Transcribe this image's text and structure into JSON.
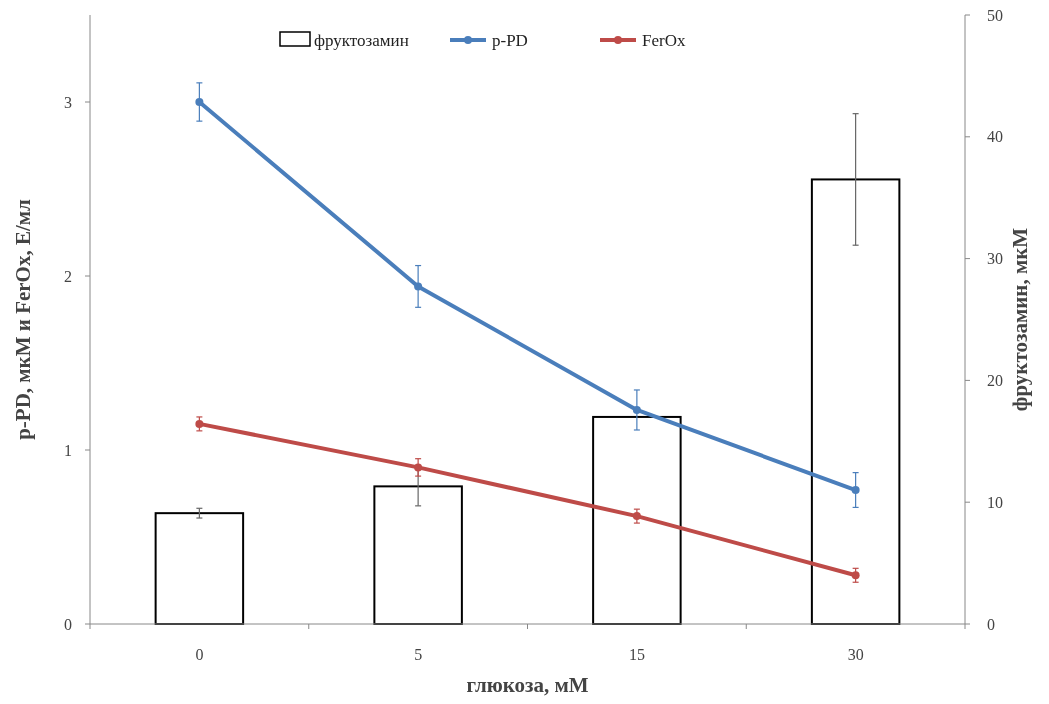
{
  "chart_data": {
    "type": "bar",
    "xlabel": "глюкоза, мМ",
    "ylabel": "p-PD, мкМ и FerOx, Е/мл",
    "y2label": "фруктозамин, мкМ",
    "categories": [
      "0",
      "5",
      "15",
      "30"
    ],
    "series": [
      {
        "name": "фруктозамин",
        "axis": "y2",
        "color": "#ffffff",
        "values": [
          9.1,
          11.3,
          17.0,
          36.5
        ],
        "errors": [
          0.4,
          1.6,
          null,
          5.4
        ]
      },
      {
        "name": "p-PD",
        "type": "line",
        "color": "#4a7ebb",
        "values": [
          3.0,
          1.94,
          1.23,
          0.77
        ],
        "errors": [
          0.11,
          0.12,
          0.115,
          0.1
        ]
      },
      {
        "name": "FerOx",
        "type": "line",
        "color": "#be4b48",
        "values": [
          1.15,
          0.9,
          0.62,
          0.28
        ],
        "errors": [
          0.04,
          0.05,
          0.04,
          0.04
        ]
      }
    ],
    "ylim": [
      0,
      3.5
    ],
    "yticks": [
      0,
      1,
      2,
      3
    ],
    "y2lim": [
      0,
      50
    ],
    "y2ticks": [
      0,
      10,
      20,
      30,
      40,
      50
    ],
    "marker": "circle",
    "line_style": "solid",
    "legend": "top",
    "grid": false
  }
}
